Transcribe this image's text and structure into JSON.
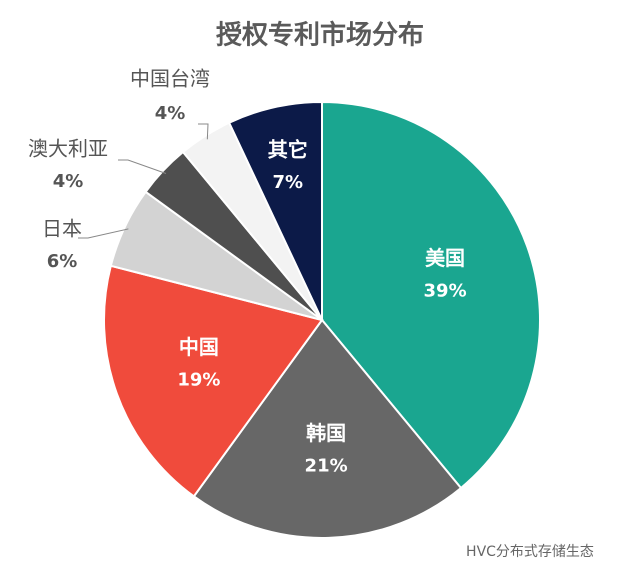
{
  "chart_data": {
    "type": "pie",
    "title": "授权专利市场分布",
    "categories": [
      "美国",
      "韩国",
      "中国",
      "日本",
      "澳大利亚",
      "中国台湾",
      "其它"
    ],
    "values": [
      39,
      21,
      19,
      6,
      4,
      4,
      7
    ],
    "value_labels": [
      "39%",
      "21%",
      "19%",
      "6%",
      "4%",
      "4%",
      "7%"
    ],
    "colors": [
      "#1aa690",
      "#676767",
      "#f04b3c",
      "#d3d3d3",
      "#4f4f4f",
      "#f3f3f3",
      "#0c1a48"
    ],
    "watermark": "HVC分布式存储生态"
  }
}
